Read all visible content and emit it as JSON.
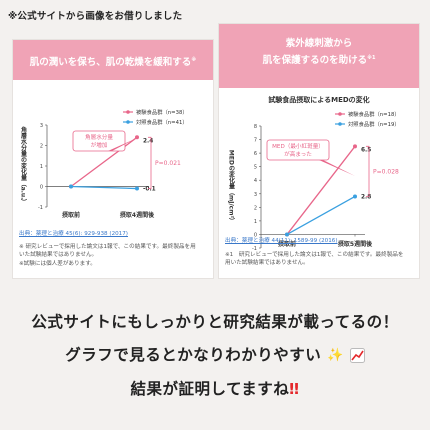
{
  "note": "※公式サイトから画像をお借りしました",
  "left_card": {
    "banner": "肌の潤いを保ち、肌の乾燥を緩和する",
    "banner_sup": "※",
    "source_link": "出典：薬理と治療 45(6): 929-938 (2017)",
    "source_lines": [
      "※ 研究レビューで採用した論文は1報で、この結果です。最終製品を用",
      "いた試験結果ではありません。",
      "※試験には個人差があります。"
    ]
  },
  "right_card": {
    "banner_line1": "紫外線刺激から",
    "banner_line2": "肌を保護するのを助ける",
    "banner_sup": "※1",
    "source_link": "出典：薬理と治療 44(11): 1589-99 (2016)",
    "source_lines": [
      "※1　研究レビューで採用した論文は1報で、この結果です。最終製品を",
      "用いた試験結果ではありません。"
    ]
  },
  "bottom": {
    "line1": "公式サイトにもしっかりと研究結果が載ってるの！",
    "line2": "グラフで見るとかなりわかりやすい",
    "line3": "結果が証明してますね"
  },
  "colors": {
    "test": "#e8668a",
    "control": "#3aa0e0",
    "banner": "#f0a3b6",
    "accent_red": "#e4282b"
  },
  "chart_data": [
    {
      "type": "line",
      "ylabel": "角層水分量の変化量（a.u.）",
      "categories": [
        "摂取前",
        "摂取4週間後"
      ],
      "ylim": [
        -1,
        3
      ],
      "yticks": [
        -1,
        0,
        1,
        2,
        3
      ],
      "series": [
        {
          "name": "被験食品群（n=38）",
          "color": "#e8668a",
          "values": [
            0,
            2.4
          ],
          "label": "2.4"
        },
        {
          "name": "対照食品群（n=41）",
          "color": "#3aa0e0",
          "values": [
            0,
            -0.1
          ],
          "label": "-0.1"
        }
      ],
      "annotation": "角層水分量が増加",
      "pvalue": "P=0.021"
    },
    {
      "type": "line",
      "title": "試験食品摂取によるMEDの変化",
      "ylabel": "MEDの変化量（mJ/cm²）",
      "categories": [
        "摂取前",
        "摂取5週間後"
      ],
      "ylim": [
        -1,
        8
      ],
      "yticks": [
        -1,
        0,
        1,
        2,
        3,
        4,
        5,
        6,
        7,
        8
      ],
      "series": [
        {
          "name": "被験食品群（n=18）",
          "color": "#e8668a",
          "values": [
            0,
            6.5
          ],
          "label": "6.5"
        },
        {
          "name": "対照食品群（n=19）",
          "color": "#3aa0e0",
          "values": [
            0,
            2.8
          ],
          "label": "2.8"
        }
      ],
      "annotation": "MED（最小紅斑量）が高まった",
      "pvalue": "P=0.028"
    }
  ]
}
